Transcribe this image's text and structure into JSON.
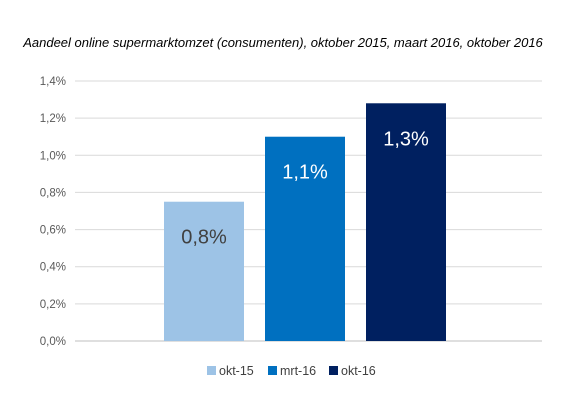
{
  "chart_data": {
    "type": "bar",
    "title": "Aandeel online supermarktomzet (consumenten), oktober 2015, maart 2016, oktober 2016",
    "xlabel": "",
    "ylabel": "",
    "categories": [
      "okt-15",
      "mrt-16",
      "okt-16"
    ],
    "values": [
      0.75,
      1.1,
      1.28
    ],
    "data_labels": [
      "0,8%",
      "1,1%",
      "1,3%"
    ],
    "ylim": [
      0,
      1.4
    ],
    "yticks": [
      0,
      0.2,
      0.4,
      0.6,
      0.8,
      1.0,
      1.2,
      1.4
    ],
    "ytick_labels": [
      "0,0%",
      "0,2%",
      "0,4%",
      "0,6%",
      "0,8%",
      "1,0%",
      "1,2%",
      "1,4%"
    ],
    "colors": [
      "#9dc3e6",
      "#0070c0",
      "#002060"
    ],
    "label_colors": [
      "#404040",
      "#ffffff",
      "#ffffff"
    ],
    "grid": true,
    "legend_position": "bottom"
  }
}
